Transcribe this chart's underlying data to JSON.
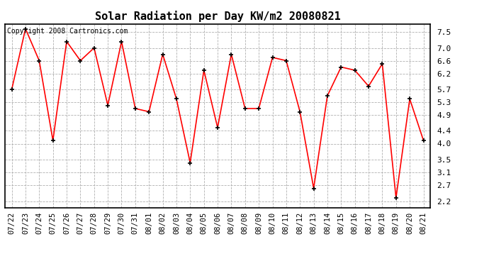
{
  "title": "Solar Radiation per Day KW/m2 20080821",
  "copyright_text": "Copyright 2008 Cartronics.com",
  "x_labels": [
    "07/22",
    "07/23",
    "07/24",
    "07/25",
    "07/26",
    "07/27",
    "07/28",
    "07/29",
    "07/30",
    "07/31",
    "08/01",
    "08/02",
    "08/03",
    "08/04",
    "08/05",
    "08/06",
    "08/07",
    "08/08",
    "08/09",
    "08/10",
    "08/11",
    "08/12",
    "08/13",
    "08/14",
    "08/15",
    "08/16",
    "08/17",
    "08/18",
    "08/19",
    "08/20",
    "08/21"
  ],
  "values": [
    5.7,
    7.6,
    6.6,
    4.1,
    7.2,
    6.6,
    7.0,
    5.2,
    7.2,
    5.1,
    5.0,
    6.8,
    5.4,
    3.4,
    6.3,
    4.5,
    6.8,
    5.1,
    5.1,
    6.7,
    6.6,
    5.0,
    2.6,
    5.5,
    6.4,
    6.3,
    5.8,
    6.5,
    2.3,
    5.4,
    4.1
  ],
  "line_color": "#ff0000",
  "marker_color": "#000000",
  "background_color": "#ffffff",
  "grid_color": "#b0b0b0",
  "ylim": [
    2.0,
    7.75
  ],
  "yticks": [
    2.2,
    2.7,
    3.1,
    3.5,
    4.0,
    4.4,
    4.9,
    5.3,
    5.7,
    6.2,
    6.6,
    7.0,
    7.5
  ],
  "title_fontsize": 11,
  "copyright_fontsize": 7,
  "tick_fontsize": 7.5,
  "ytick_fontsize": 8
}
